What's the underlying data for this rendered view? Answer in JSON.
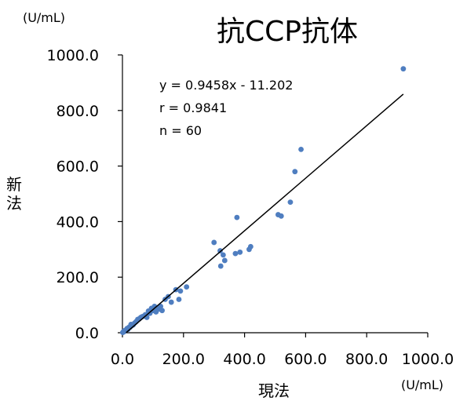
{
  "chart_data": {
    "type": "scatter",
    "title": "抗CCP抗体",
    "xlabel": "現法",
    "ylabel": "新法",
    "x_unit": "(U/mL)",
    "y_unit": "(U/mL)",
    "xlim": [
      0,
      1000
    ],
    "ylim": [
      0,
      1000
    ],
    "xticks": [
      "0.0",
      "200.0",
      "400.0",
      "600.0",
      "800.0",
      "1000.0"
    ],
    "yticks": [
      "0.0",
      "200.0",
      "400.0",
      "600.0",
      "800.0",
      "1000.0"
    ],
    "grid": false,
    "marker_color": "#4F7EC0",
    "line_color": "#000000",
    "stats": [
      "y = 0.9458x - 11.202",
      "r = 0.9841",
      "n = 60"
    ],
    "regression": {
      "slope": 0.9458,
      "intercept": -11.202,
      "x_range": [
        0,
        920
      ]
    },
    "points": [
      [
        1,
        1
      ],
      [
        2,
        2
      ],
      [
        3,
        3
      ],
      [
        4,
        4
      ],
      [
        5,
        5
      ],
      [
        6,
        4
      ],
      [
        8,
        8
      ],
      [
        10,
        7
      ],
      [
        12,
        10
      ],
      [
        15,
        15
      ],
      [
        18,
        12
      ],
      [
        20,
        18
      ],
      [
        25,
        20
      ],
      [
        30,
        25
      ],
      [
        35,
        28
      ],
      [
        60,
        55
      ],
      [
        70,
        60
      ],
      [
        75,
        65
      ],
      [
        80,
        55
      ],
      [
        90,
        70
      ],
      [
        100,
        80
      ],
      [
        110,
        75
      ],
      [
        115,
        90
      ],
      [
        120,
        85
      ],
      [
        125,
        95
      ],
      [
        130,
        80
      ],
      [
        160,
        110
      ],
      [
        175,
        155
      ],
      [
        185,
        120
      ],
      [
        190,
        150
      ],
      [
        210,
        165
      ],
      [
        300,
        325
      ],
      [
        320,
        295
      ],
      [
        330,
        280
      ],
      [
        335,
        260
      ],
      [
        322,
        240
      ],
      [
        370,
        285
      ],
      [
        375,
        415
      ],
      [
        385,
        290
      ],
      [
        415,
        300
      ],
      [
        420,
        310
      ],
      [
        510,
        425
      ],
      [
        520,
        420
      ],
      [
        550,
        470
      ],
      [
        565,
        580
      ],
      [
        585,
        660
      ],
      [
        920,
        950
      ],
      [
        40,
        35
      ],
      [
        50,
        48
      ],
      [
        65,
        58
      ],
      [
        95,
        88
      ],
      [
        140,
        120
      ],
      [
        150,
        130
      ],
      [
        45,
        40
      ],
      [
        55,
        50
      ],
      [
        85,
        78
      ],
      [
        105,
        95
      ],
      [
        28,
        30
      ],
      [
        22,
        20
      ],
      [
        7,
        6
      ]
    ]
  }
}
